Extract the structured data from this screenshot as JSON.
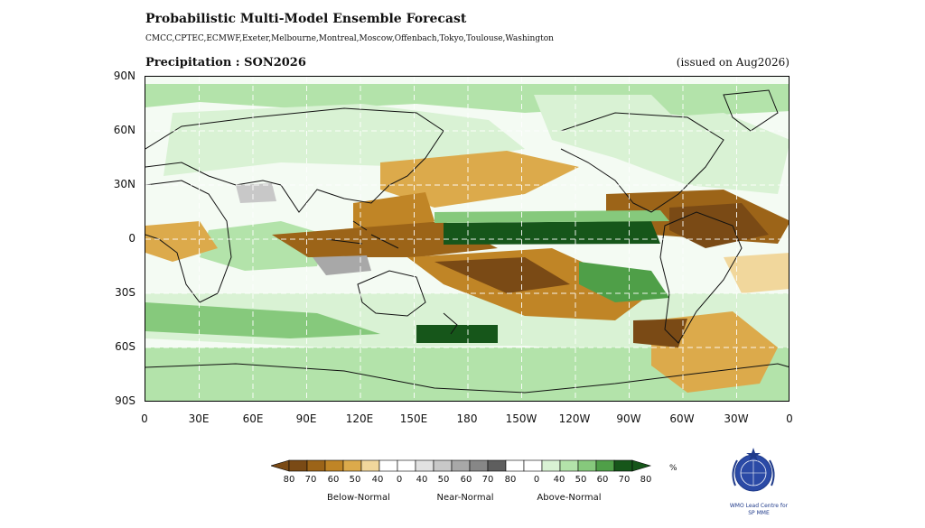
{
  "header": {
    "title": "Probabilistic Multi-Model Ensemble Forecast",
    "models": "CMCC,CPTEC,ECMWF,Exeter,Melbourne,Montreal,Moscow,Offenbach,Tokyo,Toulouse,Washington",
    "subtitle": "Precipitation : SON2026",
    "issued": "(issued on Aug2026)"
  },
  "map": {
    "lat_ticks": [
      "90N",
      "60N",
      "30N",
      "0",
      "30S",
      "60S",
      "90S"
    ],
    "lon_ticks": [
      "0",
      "30E",
      "60E",
      "90E",
      "120E",
      "150E",
      "180",
      "150W",
      "120W",
      "90W",
      "60W",
      "30W",
      "0"
    ],
    "colors": {
      "below_80": "#7a4a15",
      "below_70": "#9c6418",
      "below_60": "#c08526",
      "below_50": "#dcaa4b",
      "below_40": "#f1d79c",
      "near_40": "#e2e2e2",
      "near_50": "#c8c8c8",
      "near_60": "#a8a8a8",
      "near_70": "#878787",
      "above_40": "#d9f2d4",
      "above_50": "#b3e3aa",
      "above_60": "#86c97c",
      "above_70": "#4f9f48",
      "above_80": "#16561a",
      "coast": "#111111"
    }
  },
  "legend": {
    "labels": [
      "80",
      "70",
      "60",
      "50",
      "40",
      "0",
      "40",
      "50",
      "60",
      "70",
      "80",
      "0",
      "40",
      "50",
      "60",
      "70",
      "80"
    ],
    "categories": [
      "Below-Normal",
      "Near-Normal",
      "Above-Normal"
    ],
    "unit": "%"
  },
  "logo": {
    "text_line1": "WMO Lead Centre for",
    "text_line2": "SP MME"
  }
}
